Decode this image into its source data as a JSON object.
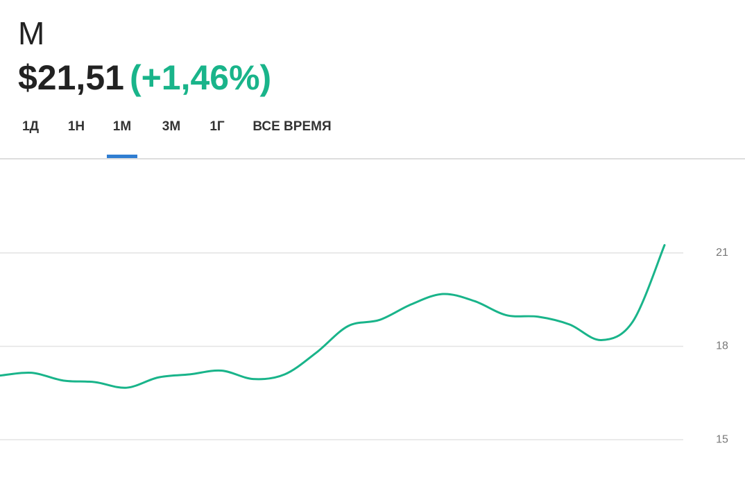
{
  "header": {
    "ticker": "M",
    "price": "$21,51",
    "change": "(+1,46%)"
  },
  "tabs": {
    "items": [
      "1Д",
      "1Н",
      "1М",
      "3М",
      "1Г",
      "ВСЕ ВРЕМЯ"
    ],
    "selected": 2
  },
  "chart_data": {
    "type": "line",
    "categories": [
      null,
      null,
      null,
      null,
      null,
      null,
      null,
      null,
      null,
      null,
      null,
      null,
      null,
      null,
      null,
      null,
      null,
      null,
      null,
      null,
      null,
      null
    ],
    "series": [
      {
        "name": null,
        "color": "#19b48a",
        "values": [
          17.06,
          17.15,
          16.9,
          16.85,
          16.67,
          17.0,
          17.1,
          17.22,
          16.95,
          17.1,
          17.8,
          18.65,
          18.85,
          19.35,
          19.68,
          19.45,
          19.0,
          18.95,
          18.7,
          18.2,
          18.8,
          21.25
        ]
      }
    ],
    "ylim": [
      13,
      24
    ],
    "yticks": [
      15,
      18,
      21
    ],
    "grid": true
  }
}
